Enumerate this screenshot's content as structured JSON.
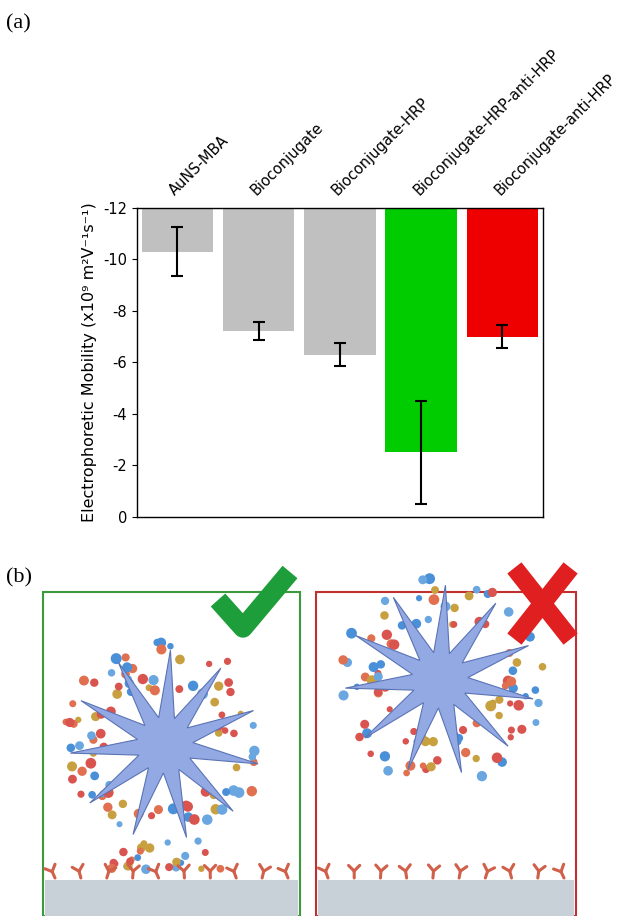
{
  "panel_labels": [
    "(a)",
    "(b)"
  ],
  "chart_data": {
    "type": "bar",
    "y_label": "Electrophoretic Mobility (x10⁹ m²V⁻¹s⁻¹)",
    "categories": [
      "AuNS-MBA",
      "Bioconjugate",
      "Bioconjugate-HRP",
      "Bioconjugate-HRP-anti-HRP",
      "Bioconjugate-anti-HRP"
    ],
    "values": [
      -10.3,
      -7.2,
      -6.3,
      -2.5,
      -7.0
    ],
    "errors": [
      0.95,
      0.35,
      0.45,
      2.0,
      0.45
    ],
    "colors": [
      "#c0c0c0",
      "#c0c0c0",
      "#c0c0c0",
      "#00cc00",
      "#ee0000"
    ],
    "ylim": [
      0,
      -12
    ],
    "yticks": [
      0,
      -2,
      -4,
      -6,
      -8,
      -10,
      -12
    ],
    "grid": false
  }
}
